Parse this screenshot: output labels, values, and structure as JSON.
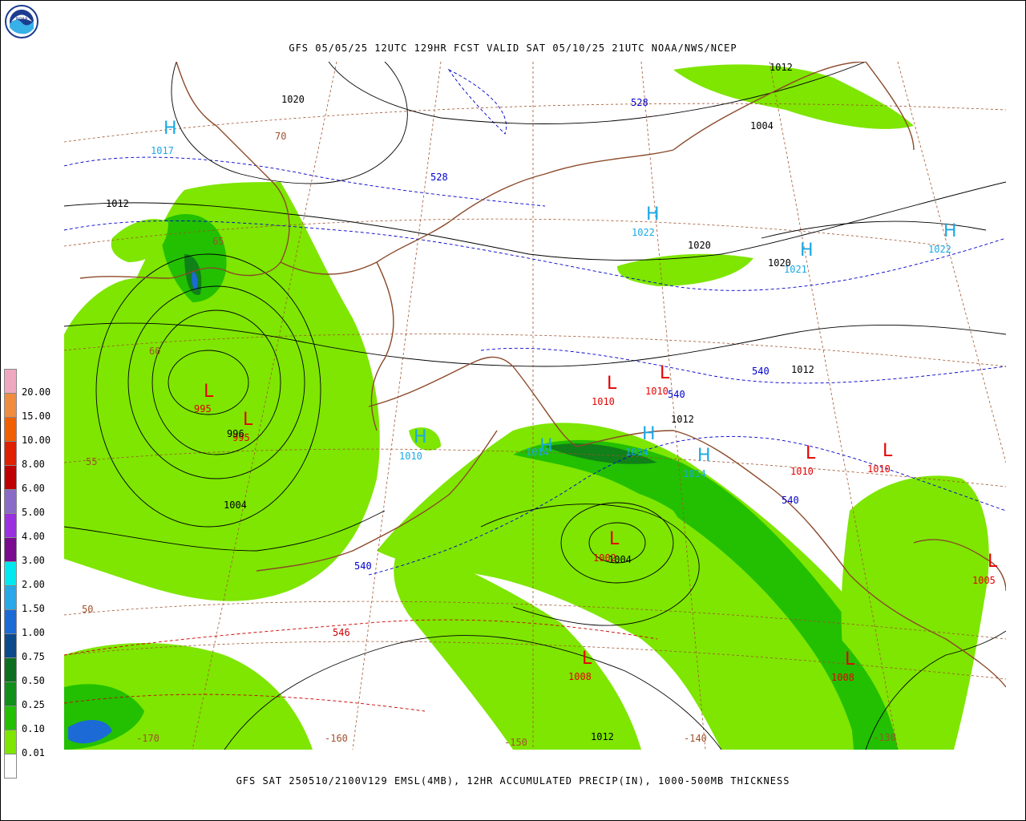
{
  "header": {
    "title": "GFS 05/05/25 12UTC 129HR FCST VALID SAT 05/10/25 21UTC NOAA/NWS/NCEP"
  },
  "footer": {
    "caption": "GFS SAT 250510/2100V129 EMSL(4MB), 12HR ACCUMULATED PRECIP(IN), 1000-500MB THICKNESS"
  },
  "logo": {
    "text": "NOAA",
    "icon": "noaa-logo-icon"
  },
  "colors": {
    "precip_light": "#7ee600",
    "precip_mid": "#22c000",
    "precip_dark": "#108018",
    "precip_blue": "#1c6ad6",
    "coast": "#8b4a2a",
    "isobar": "#000000",
    "thick_low": "#0000cc",
    "thick_high": "#cc0000",
    "high_label": "#1ba8e6",
    "low_label": "#e60000",
    "grid": "#a0522d"
  },
  "legend": {
    "unit": "IN",
    "items": [
      {
        "label": "20.00",
        "color": "#f0a8c0"
      },
      {
        "label": "15.00",
        "color": "#f08c40"
      },
      {
        "label": "10.00",
        "color": "#f06000"
      },
      {
        "label": "8.00",
        "color": "#e02000"
      },
      {
        "label": "6.00",
        "color": "#c00000"
      },
      {
        "label": "5.00",
        "color": "#8a6cc8"
      },
      {
        "label": "4.00",
        "color": "#9b30e0"
      },
      {
        "label": "3.00",
        "color": "#7a0a90"
      },
      {
        "label": "2.00",
        "color": "#00e8f0"
      },
      {
        "label": "1.50",
        "color": "#28a8e8"
      },
      {
        "label": "1.00",
        "color": "#1c6ad6"
      },
      {
        "label": "0.75",
        "color": "#0c4a8c"
      },
      {
        "label": "0.50",
        "color": "#0c7020"
      },
      {
        "label": "0.25",
        "color": "#109018"
      },
      {
        "label": "0.10",
        "color": "#22c000"
      },
      {
        "label": "0.01",
        "color": "#7ee600"
      },
      {
        "label": "",
        "color": "#ffffff"
      }
    ]
  },
  "highs": [
    {
      "letter": "H",
      "value": "1017"
    },
    {
      "letter": "H",
      "value": "1022"
    },
    {
      "letter": "H",
      "value": "1021"
    },
    {
      "letter": "H",
      "value": "1022"
    },
    {
      "letter": "H",
      "value": "1010"
    },
    {
      "letter": "H",
      "value": "1014"
    },
    {
      "letter": "H",
      "value": "1014"
    },
    {
      "letter": "H",
      "value": "1014"
    }
  ],
  "lows": [
    {
      "letter": "L",
      "value": "995"
    },
    {
      "letter": "L",
      "value": "995"
    },
    {
      "letter": "L",
      "value": "1010"
    },
    {
      "letter": "L",
      "value": "1010"
    },
    {
      "letter": "L",
      "value": "1010"
    },
    {
      "letter": "L",
      "value": "1010"
    },
    {
      "letter": "L",
      "value": "1002"
    },
    {
      "letter": "L",
      "value": "1008"
    },
    {
      "letter": "L",
      "value": "1008"
    },
    {
      "letter": "L",
      "value": "1005"
    }
  ],
  "isobar_labels": [
    "1020",
    "1012",
    "1004",
    "1012",
    "1020",
    "1020",
    "1012",
    "1012",
    "996",
    "1004",
    "1004",
    "1012"
  ],
  "thickness_labels": [
    "528",
    "528",
    "540",
    "540",
    "540",
    "540",
    "546"
  ],
  "lat_labels": [
    "70",
    "65",
    "60",
    "55",
    "50"
  ],
  "lon_labels": [
    "-170",
    "-160",
    "-150",
    "-140",
    "-130"
  ]
}
